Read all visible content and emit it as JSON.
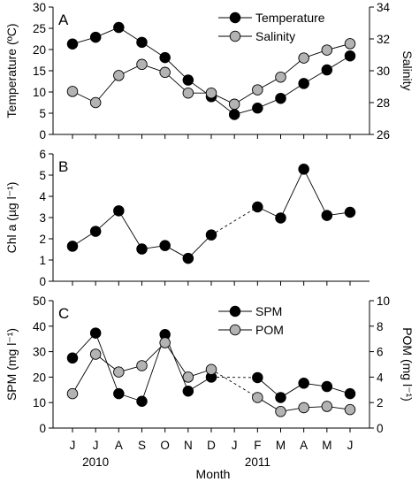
{
  "chart_data": [
    {
      "type": "line",
      "panel_label": "A",
      "categories": [
        "J",
        "J",
        "A",
        "S",
        "O",
        "N",
        "D",
        "J",
        "F",
        "M",
        "A",
        "M",
        "J"
      ],
      "series": [
        {
          "name": "Temperature",
          "axis": "left",
          "marker_color": "#000000",
          "values": [
            21.3,
            22.9,
            25.2,
            21.7,
            18.1,
            12.8,
            8.9,
            4.7,
            6.2,
            8.5,
            12.0,
            15.2,
            18.5
          ],
          "dashed_segments": []
        },
        {
          "name": "Salinity",
          "axis": "right",
          "marker_color": "#b3b3b3",
          "values": [
            28.7,
            28.0,
            29.7,
            30.4,
            29.9,
            28.6,
            28.6,
            27.9,
            28.8,
            29.6,
            30.8,
            31.3,
            31.7
          ],
          "dashed_segments": []
        }
      ],
      "left_axis": {
        "label": "Temperature (ºC)",
        "ylim": [
          0,
          30
        ],
        "ticks": [
          0,
          5,
          10,
          15,
          20,
          25,
          30
        ]
      },
      "right_axis": {
        "label": "Salinity",
        "ylim": [
          26,
          34
        ],
        "ticks": [
          26,
          28,
          30,
          32,
          34
        ]
      },
      "legend": "top-right"
    },
    {
      "type": "line",
      "panel_label": "B",
      "categories": [
        "J",
        "J",
        "A",
        "S",
        "O",
        "N",
        "D",
        "J",
        "F",
        "M",
        "A",
        "M",
        "J"
      ],
      "series": [
        {
          "name": "",
          "axis": "left",
          "marker_color": "#000000",
          "values": [
            1.65,
            2.35,
            3.32,
            1.52,
            1.68,
            1.08,
            2.18,
            null,
            3.5,
            2.98,
            5.28,
            3.1,
            3.25
          ],
          "dashed_segments": [
            [
              6,
              8
            ]
          ]
        }
      ],
      "left_axis": {
        "label": "Chl a (µg l⁻¹)",
        "ylim": [
          0,
          6
        ],
        "ticks": [
          0,
          1,
          2,
          3,
          4,
          5,
          6
        ]
      },
      "legend": "none"
    },
    {
      "type": "line",
      "panel_label": "C",
      "categories": [
        "J",
        "J",
        "A",
        "S",
        "O",
        "N",
        "D",
        "J",
        "F",
        "M",
        "A",
        "M",
        "J"
      ],
      "series": [
        {
          "name": "SPM",
          "axis": "left",
          "marker_color": "#000000",
          "values": [
            27.5,
            37.3,
            13.5,
            10.5,
            36.7,
            14.5,
            20.0,
            null,
            19.8,
            12.0,
            17.6,
            16.3,
            13.5
          ],
          "dashed_segments": [
            [
              6,
              8
            ]
          ]
        },
        {
          "name": "POM",
          "axis": "right",
          "marker_color": "#b3b3b3",
          "values": [
            2.7,
            5.8,
            4.4,
            4.9,
            6.7,
            4.0,
            4.6,
            null,
            2.4,
            1.3,
            1.6,
            1.7,
            1.45
          ],
          "dashed_segments": [
            [
              6,
              8
            ]
          ]
        }
      ],
      "left_axis": {
        "label": "SPM (mg l⁻¹)",
        "ylim": [
          0,
          50
        ],
        "ticks": [
          0,
          10,
          20,
          30,
          40,
          50
        ]
      },
      "right_axis": {
        "label": "POM (mg l⁻¹)",
        "ylim": [
          0,
          10
        ],
        "ticks": [
          0,
          2,
          4,
          6,
          8,
          10
        ]
      },
      "legend": "top-right"
    }
  ],
  "x_axis": {
    "label": "Month",
    "tick_labels": [
      "J",
      "J",
      "A",
      "S",
      "O",
      "N",
      "D",
      "J",
      "F",
      "M",
      "A",
      "M",
      "J"
    ],
    "year_labels": [
      {
        "text": "2010",
        "at_index": 1
      },
      {
        "text": "2011",
        "at_index": 8
      }
    ]
  }
}
